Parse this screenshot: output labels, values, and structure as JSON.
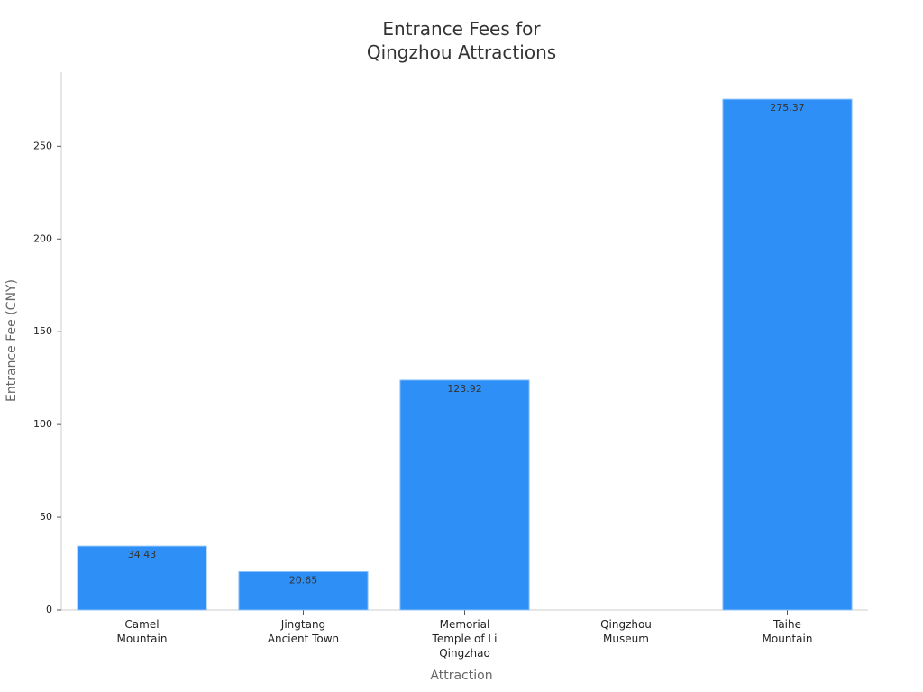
{
  "chart_data": {
    "type": "bar",
    "title": "Entrance Fees for Qingzhou Attractions",
    "x_label": "Attraction",
    "y_label": "Entrance Fee (CNY)",
    "categories": [
      "Camel Mountain",
      "Jingtang Ancient Town",
      "Memorial Temple of Li Qingzhao",
      "Qingzhou Museum",
      "Taihe Mountain"
    ],
    "values": [
      34.43,
      20.65,
      123.92,
      null,
      275.37
    ],
    "color": "#2e90f7",
    "ylim": [
      0,
      290
    ],
    "yticks": [
      0,
      50,
      100,
      150,
      200,
      250
    ]
  }
}
